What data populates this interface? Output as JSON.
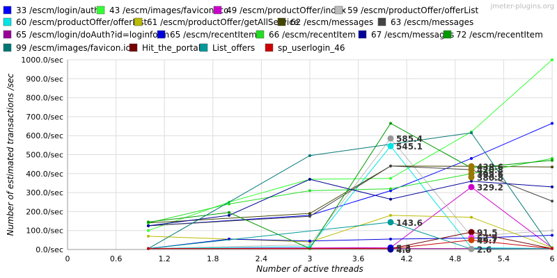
{
  "watermark": "jmeter-plugins.org",
  "chart_data": {
    "type": "line",
    "xlabel": "Number of active threads",
    "ylabel": "Number of estimated transactions /sec",
    "xlim": [
      0,
      6
    ],
    "ylim": [
      0,
      1000
    ],
    "x_ticks": [
      "0",
      "0.6",
      "1.2",
      "1.8",
      "2.4",
      "3",
      "3.6",
      "4.2",
      "4.8",
      "5.4",
      "6"
    ],
    "y_ticks": [
      "0.0/sec",
      "100.0/sec",
      "200.0/sec",
      "300.0/sec",
      "400.0/sec",
      "500.0/sec",
      "600.0/sec",
      "700.0/sec",
      "800.0/sec",
      "900.0/sec",
      "1000.0/sec"
    ],
    "grid": true,
    "legend_position": "top",
    "series": [
      {
        "name": "33 /escm/login/auth",
        "color": "#0000ff",
        "points": [
          [
            1,
            125
          ],
          [
            3,
            180
          ],
          [
            4,
            310
          ],
          [
            5,
            480
          ],
          [
            6,
            665
          ]
        ]
      },
      {
        "name": "43 /escm/images/favicon.ico",
        "color": "#33ff33",
        "points": [
          [
            1,
            100
          ],
          [
            2,
            250
          ],
          [
            3,
            370
          ],
          [
            4,
            375
          ],
          [
            5,
            620
          ],
          [
            6,
            1000
          ]
        ]
      },
      {
        "name": "49 /escm/productOffer/index",
        "color": "#cc00cc",
        "points": [
          [
            1,
            5
          ],
          [
            4,
            10
          ],
          [
            5,
            329.2
          ],
          [
            6,
            10
          ]
        ]
      },
      {
        "name": "59 /escm/productOffer/offerList",
        "color": "#bbbbbb",
        "points": [
          [
            1,
            5
          ],
          [
            3,
            25
          ],
          [
            4,
            585.4
          ],
          [
            5,
            70
          ],
          [
            6,
            100
          ]
        ]
      },
      {
        "name": "60 /escm/productOffer/offerList",
        "color": "#00e5e5",
        "points": [
          [
            1,
            5
          ],
          [
            3,
            15
          ],
          [
            4,
            545.1
          ],
          [
            5,
            10
          ],
          [
            6,
            5
          ]
        ]
      },
      {
        "name": "61 /escm/productOffer/getAllService",
        "color": "#bbbb00",
        "points": [
          [
            1,
            70
          ],
          [
            2,
            55
          ],
          [
            3,
            40
          ],
          [
            4,
            180
          ],
          [
            5,
            170
          ],
          [
            6,
            10
          ]
        ]
      },
      {
        "name": "62 /escm/messages",
        "color": "#444400",
        "points": [
          [
            1,
            140
          ],
          [
            3,
            190
          ],
          [
            4,
            440
          ],
          [
            5,
            438.6
          ],
          [
            6,
            435
          ]
        ]
      },
      {
        "name": "63 /escm/messages",
        "color": "#444444",
        "points": [
          [
            1,
            125
          ],
          [
            3,
            175
          ],
          [
            4,
            440
          ],
          [
            5,
            420.8
          ],
          [
            6,
            255
          ]
        ]
      },
      {
        "name": "65 /escm/login/doAuth?id=loginform",
        "color": "#990099",
        "points": [
          [
            1,
            5
          ],
          [
            4,
            5
          ],
          [
            5,
            5
          ],
          [
            6,
            5
          ]
        ]
      },
      {
        "name": "65 /escm/recentItem",
        "color": "#0000dd",
        "points": [
          [
            1,
            5
          ],
          [
            2,
            55
          ],
          [
            3,
            45
          ],
          [
            4,
            55
          ],
          [
            5,
            60
          ],
          [
            6,
            75
          ]
        ]
      },
      {
        "name": "66 /escm/recentItem",
        "color": "#22dd22",
        "points": [
          [
            1,
            140
          ],
          [
            2,
            240
          ],
          [
            3,
            310
          ],
          [
            4,
            320
          ],
          [
            5,
            399.6
          ],
          [
            6,
            480
          ]
        ]
      },
      {
        "name": "67 /escm/messages",
        "color": "#000099",
        "points": [
          [
            1,
            125
          ],
          [
            2,
            180
          ],
          [
            3,
            370
          ],
          [
            4,
            265
          ],
          [
            5,
            360
          ],
          [
            6,
            330
          ]
        ]
      },
      {
        "name": "72 /escm/recentItem",
        "color": "#009900",
        "points": [
          [
            1,
            145
          ],
          [
            2,
            195
          ],
          [
            3,
            5
          ],
          [
            4,
            665
          ],
          [
            5,
            430
          ],
          [
            6,
            470
          ]
        ]
      },
      {
        "name": "99 /escm/images/favicon.ico",
        "color": "#007777",
        "points": [
          [
            1,
            5
          ],
          [
            3,
            495
          ],
          [
            4,
            555
          ],
          [
            5,
            615
          ],
          [
            6,
            5
          ]
        ]
      },
      {
        "name": "Hit_the_portal",
        "color": "#770000",
        "points": [
          [
            1,
            5
          ],
          [
            4,
            5
          ],
          [
            5,
            91.5
          ],
          [
            6,
            5
          ]
        ]
      },
      {
        "name": "List_offers",
        "color": "#009999",
        "points": [
          [
            1,
            5
          ],
          [
            4,
            143.6
          ],
          [
            5,
            2.6
          ],
          [
            6,
            5
          ]
        ]
      },
      {
        "name": "sp_userlogin_46",
        "color": "#cc0000",
        "points": [
          [
            1,
            5
          ],
          [
            4,
            5
          ],
          [
            5,
            49.7
          ],
          [
            6,
            5
          ]
        ]
      }
    ],
    "annotations": [
      {
        "text": "585.4",
        "x": 4,
        "y": 585.4,
        "color": "#999999"
      },
      {
        "text": "545.1",
        "x": 4,
        "y": 545.1,
        "color": "#00e5e5"
      },
      {
        "text": "143.6",
        "x": 4,
        "y": 143.6,
        "color": "#009999"
      },
      {
        "text": "438.6",
        "x": 5,
        "y": 438.6,
        "color": "#997700"
      },
      {
        "text": "420.8",
        "x": 5,
        "y": 420.8,
        "color": "#997700"
      },
      {
        "text": "399.6",
        "x": 5,
        "y": 399.6,
        "color": "#997700"
      },
      {
        "text": "380.8",
        "x": 5,
        "y": 380.8,
        "color": "#997700"
      },
      {
        "text": "329.2",
        "x": 5,
        "y": 329.2,
        "color": "#cc00cc"
      },
      {
        "text": "91.5",
        "x": 5,
        "y": 91.5,
        "color": "#770000"
      },
      {
        "text": "62.7",
        "x": 5,
        "y": 62.7,
        "color": "#ff33ff"
      },
      {
        "text": "49.7",
        "x": 5,
        "y": 49.7,
        "color": "#cc4400"
      },
      {
        "text": "2.6",
        "x": 5,
        "y": 2.6,
        "color": "#999999"
      },
      {
        "text": "5.3",
        "x": 4,
        "y": 10,
        "color": "#0000dd"
      },
      {
        "text": "4.0",
        "x": 4,
        "y": 0,
        "color": "#000099"
      }
    ]
  }
}
